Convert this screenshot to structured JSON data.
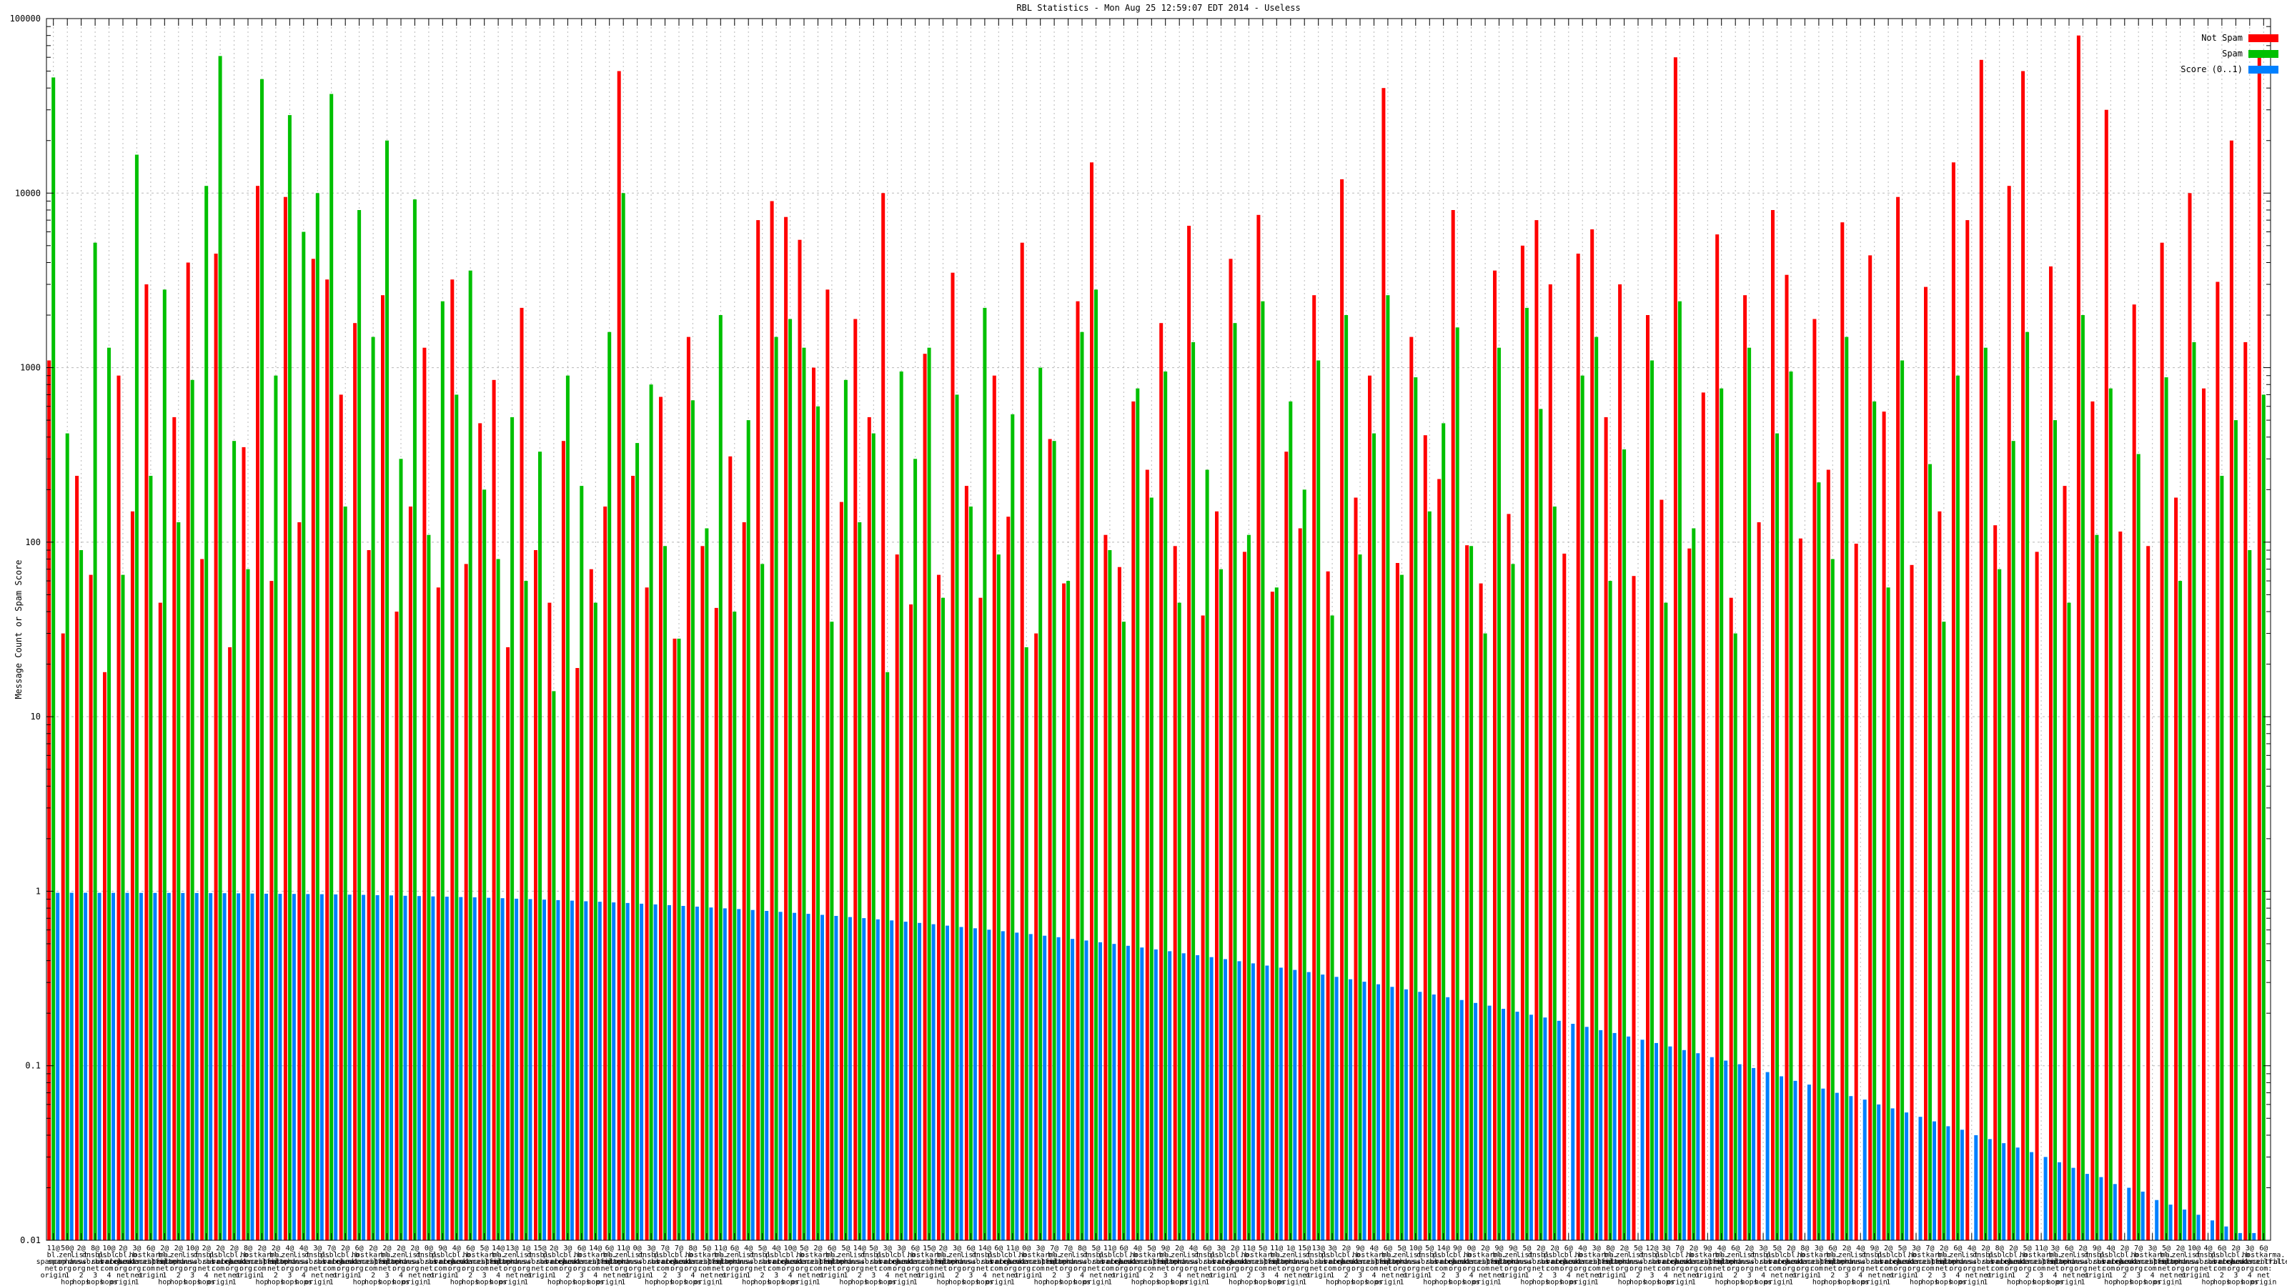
{
  "chart_data": {
    "type": "bar",
    "title": "RBL Statistics - Mon Aug 25 12:59:07 EDT 2014 - Useless",
    "xlabel": "",
    "ylabel": "Message Count or Spam Score",
    "yscale": "log",
    "ylim": [
      0.01,
      100000
    ],
    "yticks": [
      "100000",
      "10000",
      "1000",
      "100",
      "10",
      "1",
      "0.1",
      "0.01"
    ],
    "grid": true,
    "legend_position": "top-right",
    "series": [
      {
        "name": "Not Spam",
        "color": "#ff0000",
        "values": [
          1100,
          30,
          240,
          65,
          18,
          900,
          150,
          3000,
          45,
          520,
          4000,
          80,
          4500,
          25,
          350,
          11000,
          60,
          9500,
          130,
          4200,
          3200,
          700,
          1800,
          90,
          2600,
          40,
          160,
          1300,
          55,
          3200,
          75,
          480,
          850,
          25,
          2200,
          90,
          45,
          380,
          19,
          70,
          160,
          50000,
          240,
          55,
          680,
          28,
          1500,
          95,
          42,
          310,
          130,
          7000,
          9000,
          7300,
          5400,
          1000,
          2800,
          170,
          1900,
          520,
          10000,
          85,
          44,
          1200,
          65,
          3500,
          210,
          48,
          900,
          140,
          5200,
          30,
          390,
          58,
          2400,
          15000,
          110,
          72,
          640,
          260,
          1800,
          95,
          6500,
          38,
          150,
          4200,
          88,
          7500,
          52,
          330,
          120,
          2600,
          68,
          12000,
          180,
          900,
          40000,
          76,
          1500,
          410,
          230,
          8000,
          96,
          58,
          3600,
          145,
          5000,
          7000,
          3000,
          86,
          4500,
          6200,
          520,
          3000,
          64,
          2000,
          175,
          60000,
          92,
          720,
          5800,
          48,
          2600,
          130,
          8000,
          3400,
          105,
          1900,
          260,
          6800,
          98,
          4400,
          560,
          9500,
          74,
          2900,
          150,
          15000,
          7000,
          58000,
          125,
          11000,
          50000,
          88,
          3800,
          210,
          80000,
          640,
          30000,
          115,
          2300,
          95,
          5200,
          180,
          10000,
          760,
          3100,
          20000,
          1400,
          60000
        ]
      },
      {
        "name": "Spam",
        "color": "#00c000",
        "values": [
          46000,
          420,
          90,
          5200,
          1300,
          65,
          16600,
          240,
          2800,
          130,
          850,
          11000,
          61000,
          380,
          70,
          45000,
          900,
          28000,
          6000,
          10000,
          37000,
          160,
          8000,
          1500,
          20000,
          300,
          9200,
          110,
          2400,
          700,
          3600,
          200,
          80,
          520,
          60,
          330,
          14,
          900,
          210,
          45,
          1600,
          10000,
          370,
          800,
          95,
          28,
          650,
          120,
          2000,
          40,
          500,
          75,
          1500,
          1900,
          1300,
          600,
          35,
          850,
          130,
          420,
          18,
          950,
          300,
          1300,
          48,
          700,
          160,
          2200,
          85,
          540,
          25,
          1000,
          380,
          60,
          1600,
          2800,
          90,
          35,
          760,
          180,
          950,
          45,
          1400,
          260,
          70,
          1800,
          110,
          2400,
          55,
          640,
          200,
          1100,
          38,
          2000,
          85,
          420,
          2600,
          65,
          880,
          150,
          480,
          1700,
          95,
          30,
          1300,
          75,
          2200,
          580,
          160,
          0,
          900,
          1500,
          60,
          340,
          0,
          1100,
          45,
          2400,
          120,
          0,
          760,
          30,
          1300,
          0,
          420,
          950,
          0,
          220,
          80,
          1500,
          0,
          640,
          55,
          1100,
          0,
          280,
          35,
          900,
          0,
          1300,
          70,
          380,
          1600,
          0,
          500,
          45,
          2000,
          110,
          760,
          0,
          320,
          0,
          880,
          60,
          1400,
          0,
          240,
          500,
          90,
          700
        ]
      },
      {
        "name": "Score (0..1)",
        "color": "#0080ff",
        "values": [
          0.98,
          0.98,
          0.98,
          0.979,
          0.979,
          0.979,
          0.978,
          0.978,
          0.978,
          0.977,
          0.977,
          0.975,
          0.974,
          0.972,
          0.97,
          0.968,
          0.966,
          0.965,
          0.963,
          0.961,
          0.959,
          0.956,
          0.953,
          0.949,
          0.946,
          0.942,
          0.938,
          0.934,
          0.93,
          0.926,
          0.922,
          0.917,
          0.912,
          0.906,
          0.901,
          0.895,
          0.889,
          0.883,
          0.876,
          0.87,
          0.863,
          0.856,
          0.848,
          0.84,
          0.832,
          0.824,
          0.816,
          0.807,
          0.798,
          0.79,
          0.781,
          0.771,
          0.762,
          0.752,
          0.742,
          0.732,
          0.722,
          0.711,
          0.701,
          0.69,
          0.68,
          0.669,
          0.658,
          0.647,
          0.635,
          0.624,
          0.613,
          0.602,
          0.59,
          0.579,
          0.568,
          0.556,
          0.545,
          0.533,
          0.522,
          0.51,
          0.499,
          0.487,
          0.476,
          0.464,
          0.453,
          0.441,
          0.43,
          0.419,
          0.408,
          0.397,
          0.386,
          0.375,
          0.365,
          0.354,
          0.344,
          0.333,
          0.323,
          0.313,
          0.303,
          0.293,
          0.283,
          0.274,
          0.265,
          0.256,
          0.247,
          0.238,
          0.229,
          0.221,
          0.212,
          0.204,
          0.196,
          0.189,
          0.181,
          0.174,
          0.167,
          0.16,
          0.154,
          0.147,
          0.141,
          0.135,
          0.129,
          0.123,
          0.118,
          0.112,
          0.107,
          0.102,
          0.097,
          0.092,
          0.087,
          0.082,
          0.078,
          0.074,
          0.07,
          0.067,
          0.064,
          0.06,
          0.057,
          0.054,
          0.051,
          0.048,
          0.045,
          0.043,
          0.04,
          0.038,
          0.036,
          0.034,
          0.032,
          0.03,
          0.028,
          0.026,
          0.024,
          0.023,
          0.021,
          0.02,
          0.019,
          0.017,
          0.016,
          0.015,
          0.014,
          0.013,
          0.012,
          0.011,
          0.011,
          0.01
        ]
      }
    ],
    "x_tick_counts": [
      11,
      50,
      2,
      8,
      10,
      2,
      3,
      6,
      2,
      2,
      10,
      2,
      2,
      2,
      8,
      2,
      2,
      4,
      4,
      3,
      7,
      2,
      6,
      2,
      2,
      2,
      2,
      0,
      9,
      4,
      6,
      5,
      14,
      13,
      1,
      15,
      2,
      3,
      6,
      14,
      6,
      11,
      0,
      3,
      7,
      7,
      8,
      5,
      11,
      6,
      4,
      5,
      4,
      10,
      5,
      2,
      6,
      5,
      14,
      5,
      3,
      3,
      6,
      15,
      2,
      3,
      6,
      14,
      6,
      11,
      0,
      3,
      7,
      7,
      8,
      5,
      11,
      6,
      4,
      5,
      9,
      2,
      4,
      6,
      3,
      2,
      11,
      5,
      11,
      1,
      15,
      13,
      3,
      2,
      9,
      4,
      6,
      5,
      10,
      5,
      14,
      9,
      0,
      2,
      9,
      9,
      5,
      2,
      2,
      6,
      4,
      3,
      8,
      2,
      5,
      12,
      3,
      7,
      2,
      9,
      4,
      6,
      2,
      3,
      5,
      2,
      8,
      3,
      6,
      2,
      4,
      9,
      2,
      5,
      3,
      7,
      2,
      6,
      4,
      2,
      8,
      2,
      5,
      11,
      3,
      6,
      2,
      9,
      4,
      2,
      7,
      3,
      5,
      2,
      10,
      4,
      6,
      2,
      3,
      6
    ],
    "x_tick_zones": [
      "bl.spamcop.net",
      "zen.spamhaus.org",
      "list.dnswl.org",
      "dnsbl.sorbs.net",
      "psbl.surriel.com",
      "cbl.abuseat.org",
      "b.barracudacentral.org",
      "hostkarma.junkemailfilter.com"
    ],
    "x_tick_relations": [
      "origin",
      "1 hop",
      "2 hops",
      "3 hops",
      "4 hops",
      "net origin",
      "net 1 hop"
    ]
  }
}
